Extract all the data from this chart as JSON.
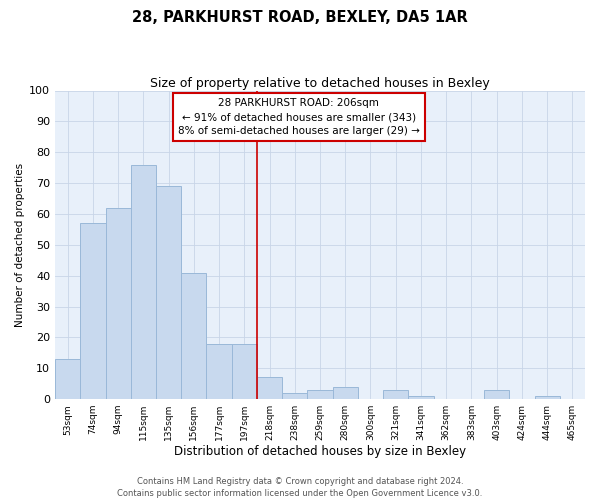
{
  "title": "28, PARKHURST ROAD, BEXLEY, DA5 1AR",
  "subtitle": "Size of property relative to detached houses in Bexley",
  "xlabel": "Distribution of detached houses by size in Bexley",
  "ylabel": "Number of detached properties",
  "bar_labels": [
    "53sqm",
    "74sqm",
    "94sqm",
    "115sqm",
    "135sqm",
    "156sqm",
    "177sqm",
    "197sqm",
    "218sqm",
    "238sqm",
    "259sqm",
    "280sqm",
    "300sqm",
    "321sqm",
    "341sqm",
    "362sqm",
    "383sqm",
    "403sqm",
    "424sqm",
    "444sqm",
    "465sqm"
  ],
  "bar_values": [
    13,
    57,
    62,
    76,
    69,
    41,
    18,
    18,
    7,
    2,
    3,
    4,
    0,
    3,
    1,
    0,
    0,
    3,
    0,
    1,
    0
  ],
  "bar_color": "#c8d9ee",
  "bar_edge_color": "#9ab8d8",
  "vline_x_index": 7.5,
  "vline_color": "#cc0000",
  "ann_line1": "28 PARKHURST ROAD: 206sqm",
  "ann_line2": "← 91% of detached houses are smaller (343)",
  "ann_line3": "8% of semi-detached houses are larger (29) →",
  "annotation_box_edge_color": "#cc0000",
  "annotation_box_face_color": "#ffffff",
  "ylim": [
    0,
    100
  ],
  "yticks": [
    0,
    10,
    20,
    30,
    40,
    50,
    60,
    70,
    80,
    90,
    100
  ],
  "grid_color": "#c8d5e8",
  "bg_color": "#e8f0fa",
  "footer_line1": "Contains HM Land Registry data © Crown copyright and database right 2024.",
  "footer_line2": "Contains public sector information licensed under the Open Government Licence v3.0.",
  "title_fontsize": 10.5,
  "subtitle_fontsize": 9,
  "xlabel_fontsize": 8.5,
  "ylabel_fontsize": 7.5,
  "ytick_fontsize": 8,
  "xtick_fontsize": 6.5,
  "annotation_fontsize": 7.5,
  "footer_fontsize": 6
}
